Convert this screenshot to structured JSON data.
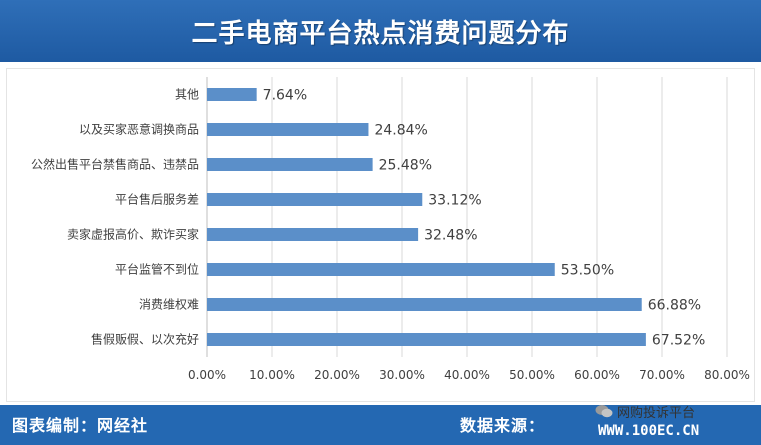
{
  "header": {
    "title": "二手电商平台热点消费问题分布"
  },
  "footer": {
    "left_text": "图表编制：网经社",
    "right_text": "数据来源：",
    "badge_text": "网购投诉平台",
    "watermark": "WWW.100EC.CN"
  },
  "colors": {
    "bar": "#5b8fc9",
    "header": "#2468b2",
    "grid": "#d9d9d9",
    "text": "#404040"
  },
  "chart_data": {
    "type": "bar",
    "orientation": "horizontal",
    "title": "",
    "xlabel": "",
    "ylabel": "",
    "categories": [
      "其他",
      "以及买家恶意调换商品",
      "公然出售平台禁售商品、违禁品",
      "平台售后服务差",
      "卖家虚报高价、欺诈买家",
      "平台监管不到位",
      "消费维权难",
      "售假贩假、以次充好"
    ],
    "values": [
      7.64,
      24.84,
      25.48,
      33.12,
      32.48,
      53.5,
      66.88,
      67.52
    ],
    "value_labels": [
      "7.64%",
      "24.84%",
      "25.48%",
      "33.12%",
      "32.48%",
      "53.50%",
      "66.88%",
      "67.52%"
    ],
    "xlim": [
      0,
      80
    ],
    "xticks": [
      "0.00%",
      "10.00%",
      "20.00%",
      "30.00%",
      "40.00%",
      "50.00%",
      "60.00%",
      "70.00%",
      "80.00%"
    ],
    "grid": true,
    "legend": "none"
  }
}
